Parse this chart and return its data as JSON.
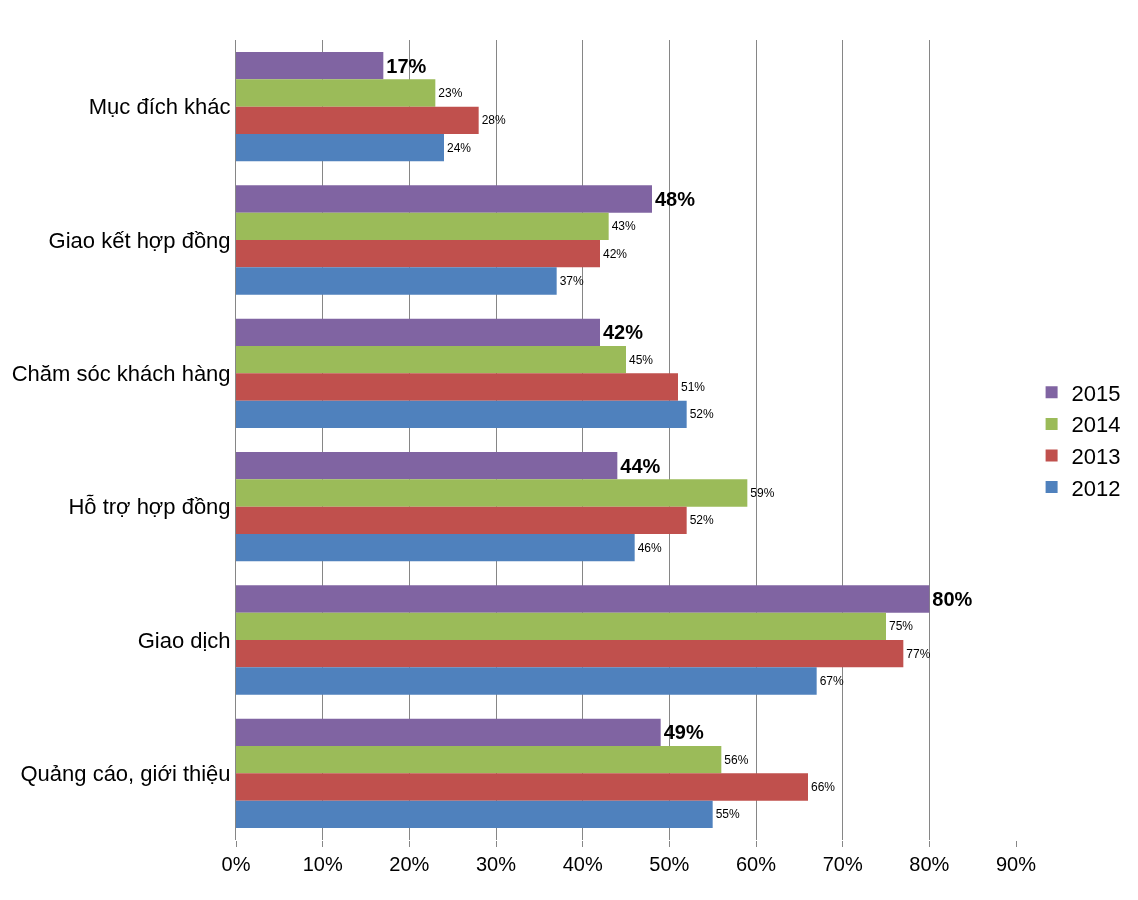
{
  "chart_data": {
    "type": "bar",
    "orientation": "horizontal",
    "categories": [
      "Mục đích khác",
      "Giao kết hợp đồng",
      "Chăm sóc khách hàng",
      "Hỗ trợ hợp đồng",
      "Giao dịch",
      "Quảng cáo, giới thiệu"
    ],
    "series": [
      {
        "name": "2015",
        "color": "#8064a2",
        "values": [
          17,
          48,
          42,
          44,
          80,
          49
        ],
        "value_labels": [
          "17%",
          "48%",
          "42%",
          "44%",
          "80%",
          "49%"
        ]
      },
      {
        "name": "2014",
        "color": "#9bbb59",
        "values": [
          23,
          43,
          45,
          59,
          75,
          56
        ],
        "value_labels": [
          "23%",
          "43%",
          "45%",
          "59%",
          "75%",
          "56%"
        ]
      },
      {
        "name": "2013",
        "color": "#c0504d",
        "values": [
          28,
          42,
          51,
          52,
          77,
          66
        ],
        "value_labels": [
          "28%",
          "42%",
          "51%",
          "52%",
          "77%",
          "66%"
        ]
      },
      {
        "name": "2012",
        "color": "#4f81bd",
        "values": [
          24,
          37,
          52,
          46,
          67,
          55
        ],
        "value_labels": [
          "24%",
          "37%",
          "52%",
          "46%",
          "67%",
          "55%"
        ]
      }
    ],
    "xlim": [
      0,
      90
    ],
    "xticks": [
      {
        "value": 0,
        "label": "0%"
      },
      {
        "value": 10,
        "label": "10%"
      },
      {
        "value": 20,
        "label": "20%"
      },
      {
        "value": 30,
        "label": "30%"
      },
      {
        "value": 40,
        "label": "40%"
      },
      {
        "value": 50,
        "label": "50%"
      },
      {
        "value": 60,
        "label": "60%"
      },
      {
        "value": 70,
        "label": "70%"
      },
      {
        "value": 80,
        "label": "80%"
      },
      {
        "value": 90,
        "label": "90%"
      }
    ],
    "grid": "x",
    "legend": "right"
  }
}
